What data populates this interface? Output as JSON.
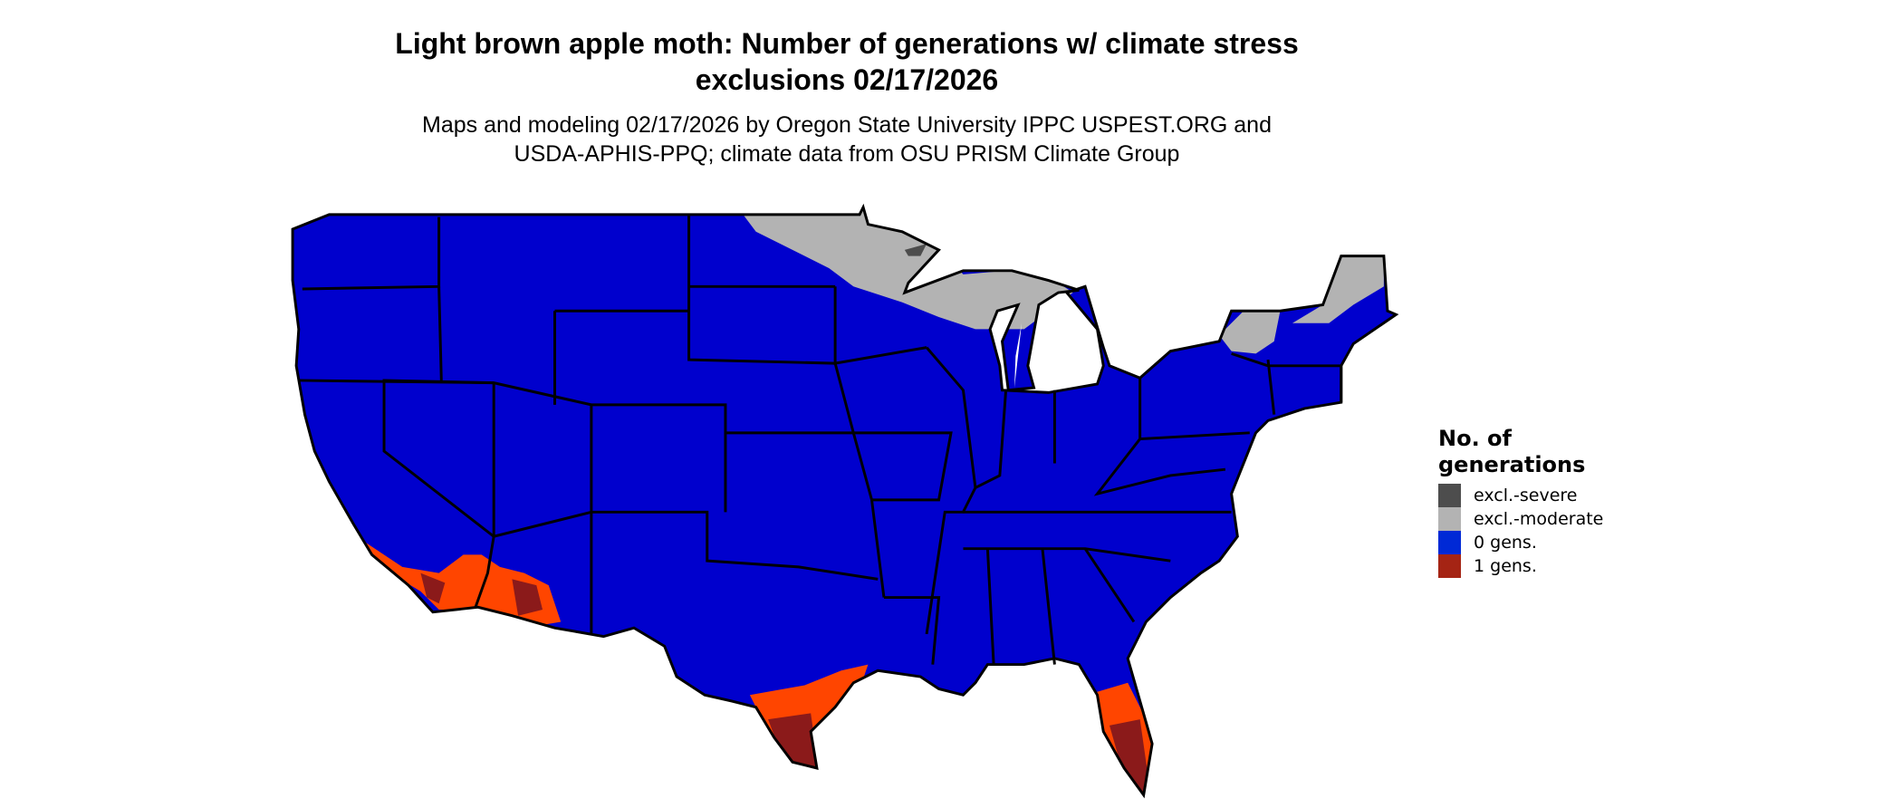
{
  "title": {
    "line1": "Light brown apple moth: Number of generations w/ climate stress",
    "line2": "exclusions 02/17/2026"
  },
  "subtitle": {
    "line1": "Maps and modeling 02/17/2026 by Oregon State University IPPC USPEST.ORG and",
    "line2": "USDA-APHIS-PPQ; climate data from OSU PRISM Climate Group"
  },
  "map": {
    "region": "Contiguous United States",
    "colors": {
      "zero_gens": "#0000CD",
      "excl_moderate": "#B3B3B3",
      "excl_severe": "#4D4D4D",
      "one_gen_light": "#FF4500",
      "one_gen_dark": "#8B1A1A",
      "boundary": "#000000"
    }
  },
  "legend": {
    "title_line1": "No. of",
    "title_line2": "generations",
    "items": [
      {
        "label": "excl.-severe",
        "color": "#4D4D4D"
      },
      {
        "label": "excl.-moderate",
        "color": "#B3B3B3"
      },
      {
        "label": "0 gens.",
        "color": "#0029D6"
      },
      {
        "label": "1 gens.",
        "color": "#A52414"
      }
    ]
  }
}
